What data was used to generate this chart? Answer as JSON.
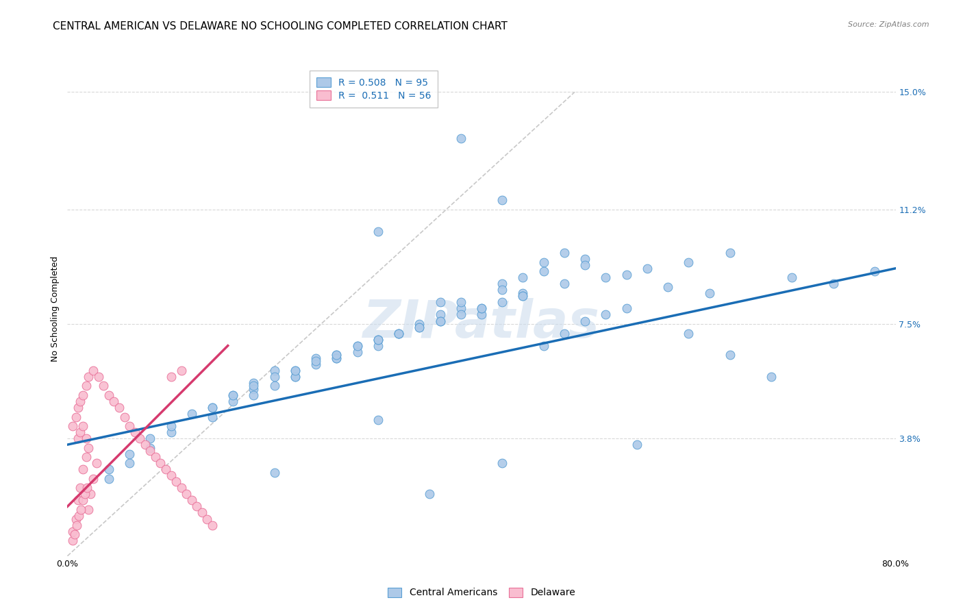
{
  "title": "CENTRAL AMERICAN VS DELAWARE NO SCHOOLING COMPLETED CORRELATION CHART",
  "source": "Source: ZipAtlas.com",
  "ylabel": "No Schooling Completed",
  "xlim": [
    0.0,
    0.8
  ],
  "ylim": [
    0.0,
    0.16
  ],
  "yticks": [
    0.038,
    0.075,
    0.112,
    0.15
  ],
  "ytick_labels": [
    "3.8%",
    "7.5%",
    "11.2%",
    "15.0%"
  ],
  "xticks": [
    0.0,
    0.16,
    0.32,
    0.48,
    0.64,
    0.8
  ],
  "xtick_labels": [
    "0.0%",
    "",
    "",
    "",
    "",
    "80.0%"
  ],
  "blue_R": "0.508",
  "blue_N": "95",
  "pink_R": "0.511",
  "pink_N": "56",
  "blue_color": "#adc9e8",
  "blue_edge_color": "#5a9fd4",
  "blue_line_color": "#1a6db5",
  "pink_color": "#f9bdd0",
  "pink_edge_color": "#e87098",
  "pink_line_color": "#d63a6e",
  "diagonal_color": "#c8c8c8",
  "grid_color": "#d8d8d8",
  "watermark": "ZIPatlas",
  "watermark_color": "#cddded",
  "blue_scatter_x": [
    0.38,
    0.44,
    0.3,
    0.42,
    0.36,
    0.46,
    0.5,
    0.48,
    0.42,
    0.44,
    0.36,
    0.32,
    0.28,
    0.24,
    0.2,
    0.18,
    0.16,
    0.22,
    0.26,
    0.3,
    0.34,
    0.38,
    0.4,
    0.28,
    0.24,
    0.2,
    0.14,
    0.16,
    0.18,
    0.22,
    0.26,
    0.3,
    0.32,
    0.36,
    0.4,
    0.44,
    0.48,
    0.52,
    0.56,
    0.6,
    0.64,
    0.7,
    0.74,
    0.78,
    0.54,
    0.58,
    0.62,
    0.5,
    0.46,
    0.42,
    0.38,
    0.34,
    0.3,
    0.26,
    0.22,
    0.18,
    0.14,
    0.1,
    0.08,
    0.06,
    0.04,
    0.04,
    0.06,
    0.08,
    0.1,
    0.12,
    0.14,
    0.16,
    0.18,
    0.2,
    0.22,
    0.24,
    0.26,
    0.28,
    0.3,
    0.32,
    0.34,
    0.36,
    0.38,
    0.4,
    0.42,
    0.44,
    0.46,
    0.48,
    0.5,
    0.52,
    0.54,
    0.6,
    0.64,
    0.68,
    0.55,
    0.42,
    0.35,
    0.2,
    0.3
  ],
  "blue_scatter_y": [
    0.135,
    0.09,
    0.105,
    0.115,
    0.082,
    0.095,
    0.096,
    0.098,
    0.088,
    0.085,
    0.078,
    0.072,
    0.068,
    0.064,
    0.06,
    0.056,
    0.052,
    0.058,
    0.065,
    0.07,
    0.075,
    0.08,
    0.078,
    0.066,
    0.062,
    0.055,
    0.048,
    0.05,
    0.054,
    0.06,
    0.064,
    0.068,
    0.072,
    0.076,
    0.08,
    0.084,
    0.088,
    0.09,
    0.093,
    0.095,
    0.098,
    0.09,
    0.088,
    0.092,
    0.091,
    0.087,
    0.085,
    0.094,
    0.092,
    0.086,
    0.082,
    0.074,
    0.07,
    0.064,
    0.058,
    0.052,
    0.045,
    0.04,
    0.035,
    0.03,
    0.025,
    0.028,
    0.033,
    0.038,
    0.042,
    0.046,
    0.048,
    0.052,
    0.055,
    0.058,
    0.06,
    0.063,
    0.065,
    0.068,
    0.07,
    0.072,
    0.074,
    0.076,
    0.078,
    0.08,
    0.082,
    0.084,
    0.068,
    0.072,
    0.076,
    0.078,
    0.08,
    0.072,
    0.065,
    0.058,
    0.036,
    0.03,
    0.02,
    0.027,
    0.044
  ],
  "pink_scatter_x": [
    0.005,
    0.008,
    0.01,
    0.012,
    0.015,
    0.018,
    0.02,
    0.022,
    0.025,
    0.028,
    0.01,
    0.012,
    0.015,
    0.018,
    0.02,
    0.005,
    0.008,
    0.01,
    0.012,
    0.015,
    0.018,
    0.02,
    0.025,
    0.03,
    0.035,
    0.04,
    0.045,
    0.05,
    0.055,
    0.06,
    0.065,
    0.07,
    0.075,
    0.08,
    0.085,
    0.09,
    0.095,
    0.1,
    0.105,
    0.11,
    0.115,
    0.12,
    0.125,
    0.13,
    0.135,
    0.14,
    0.1,
    0.11,
    0.005,
    0.007,
    0.009,
    0.011,
    0.013,
    0.015,
    0.017,
    0.019
  ],
  "pink_scatter_y": [
    0.008,
    0.012,
    0.018,
    0.022,
    0.028,
    0.032,
    0.015,
    0.02,
    0.025,
    0.03,
    0.038,
    0.04,
    0.042,
    0.038,
    0.035,
    0.042,
    0.045,
    0.048,
    0.05,
    0.052,
    0.055,
    0.058,
    0.06,
    0.058,
    0.055,
    0.052,
    0.05,
    0.048,
    0.045,
    0.042,
    0.04,
    0.038,
    0.036,
    0.034,
    0.032,
    0.03,
    0.028,
    0.026,
    0.024,
    0.022,
    0.02,
    0.018,
    0.016,
    0.014,
    0.012,
    0.01,
    0.058,
    0.06,
    0.005,
    0.007,
    0.01,
    0.013,
    0.015,
    0.018,
    0.02,
    0.022
  ],
  "blue_line_x": [
    0.0,
    0.8
  ],
  "blue_line_y": [
    0.036,
    0.093
  ],
  "pink_line_x": [
    0.0,
    0.155
  ],
  "pink_line_y": [
    0.016,
    0.068
  ],
  "diag_line_x": [
    0.0,
    0.49
  ],
  "diag_line_y": [
    0.0,
    0.15
  ],
  "title_fontsize": 11,
  "axis_label_fontsize": 9,
  "tick_fontsize": 9,
  "legend_fontsize": 10,
  "right_tick_color": "#1a6db5",
  "source_color": "#808080"
}
